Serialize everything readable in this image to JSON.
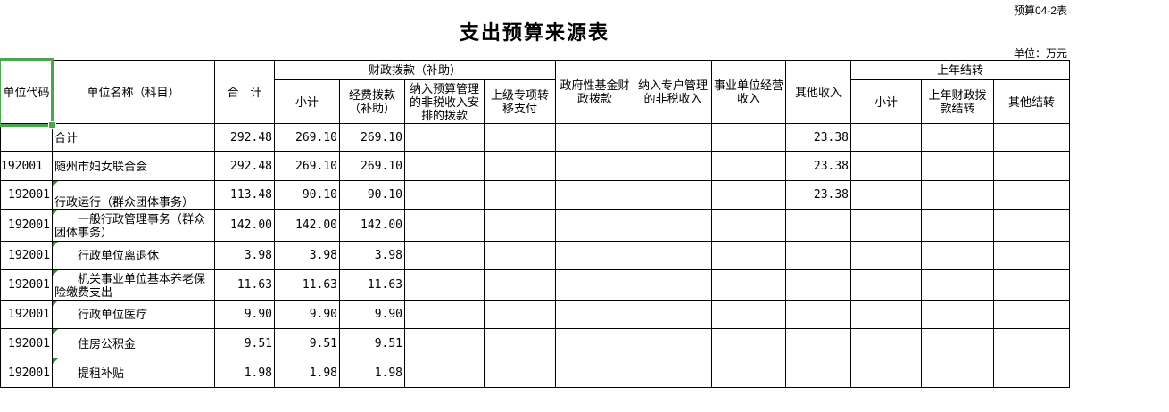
{
  "page": {
    "form_number": "预算04-2表",
    "title": "支出预算来源表",
    "unit_note": "单位：万元"
  },
  "colors": {
    "selection_green": "#4DA64D",
    "flag_green": "#2E8B2E",
    "grid_line": "#000000"
  },
  "table": {
    "headers": {
      "unit_code": "单位代码",
      "unit_name": "单位名称（科目）",
      "total": "合　计",
      "fiscal_group": "财政拨款（补助）",
      "fiscal_subtotal": "小计",
      "fiscal_funding": "经费拨款（补助）",
      "fiscal_nontax": "纳入预算管理的非税收入安排的拨款",
      "fiscal_transfer": "上级专项转移支付",
      "gov_fund": "政府性基金财政拨款",
      "special_account": "纳入专户管理的非税收入",
      "business_income": "事业单位经营收入",
      "other_income": "其他收入",
      "carryover_group": "上年结转",
      "carryover_subtotal": "小计",
      "carryover_fiscal": "上年财政拨款结转",
      "carryover_other": "其他结转"
    },
    "value_columns": [
      "合计",
      "小计",
      "经费拨款（补助）",
      "纳入预算管理的非税收入安排的拨款",
      "上级专项转移支付",
      "政府性基金财政拨款",
      "纳入专户管理的非税收入",
      "事业单位经营收入",
      "其他收入",
      "上年结转小计",
      "上年财政拨款结转",
      "其他结转"
    ],
    "rows": [
      {
        "code": "",
        "name": "合计",
        "indent": false,
        "flag": false,
        "values": [
          "292.48",
          "269.10",
          "269.10",
          "",
          "",
          "",
          "",
          "",
          "23.38",
          "",
          "",
          ""
        ]
      },
      {
        "code": "192001",
        "name": "随州市妇女联合会",
        "indent": false,
        "flag": false,
        "code_align": "left",
        "values": [
          "292.48",
          "269.10",
          "269.10",
          "",
          "",
          "",
          "",
          "",
          "23.38",
          "",
          "",
          ""
        ]
      },
      {
        "code": "192001",
        "name": "行政运行（群众团体事务）",
        "indent": true,
        "flag": true,
        "values": [
          "113.48",
          "90.10",
          "90.10",
          "",
          "",
          "",
          "",
          "",
          "23.38",
          "",
          "",
          ""
        ]
      },
      {
        "code": "192001",
        "name": "一般行政管理事务（群众团体事务）",
        "indent": true,
        "flag": true,
        "values": [
          "142.00",
          "142.00",
          "142.00",
          "",
          "",
          "",
          "",
          "",
          "",
          "",
          "",
          ""
        ]
      },
      {
        "code": "192001",
        "name": "行政单位离退休",
        "indent": true,
        "flag": true,
        "values": [
          "3.98",
          "3.98",
          "3.98",
          "",
          "",
          "",
          "",
          "",
          "",
          "",
          "",
          ""
        ]
      },
      {
        "code": "192001",
        "name": "机关事业单位基本养老保险缴费支出",
        "indent": true,
        "flag": true,
        "values": [
          "11.63",
          "11.63",
          "11.63",
          "",
          "",
          "",
          "",
          "",
          "",
          "",
          "",
          ""
        ]
      },
      {
        "code": "192001",
        "name": "行政单位医疗",
        "indent": true,
        "flag": true,
        "values": [
          "9.90",
          "9.90",
          "9.90",
          "",
          "",
          "",
          "",
          "",
          "",
          "",
          "",
          ""
        ]
      },
      {
        "code": "192001",
        "name": "住房公积金",
        "indent": true,
        "flag": true,
        "values": [
          "9.51",
          "9.51",
          "9.51",
          "",
          "",
          "",
          "",
          "",
          "",
          "",
          "",
          ""
        ]
      },
      {
        "code": "192001",
        "name": "提租补贴",
        "indent": true,
        "flag": true,
        "values": [
          "1.98",
          "1.98",
          "1.98",
          "",
          "",
          "",
          "",
          "",
          "",
          "",
          "",
          ""
        ]
      }
    ]
  }
}
